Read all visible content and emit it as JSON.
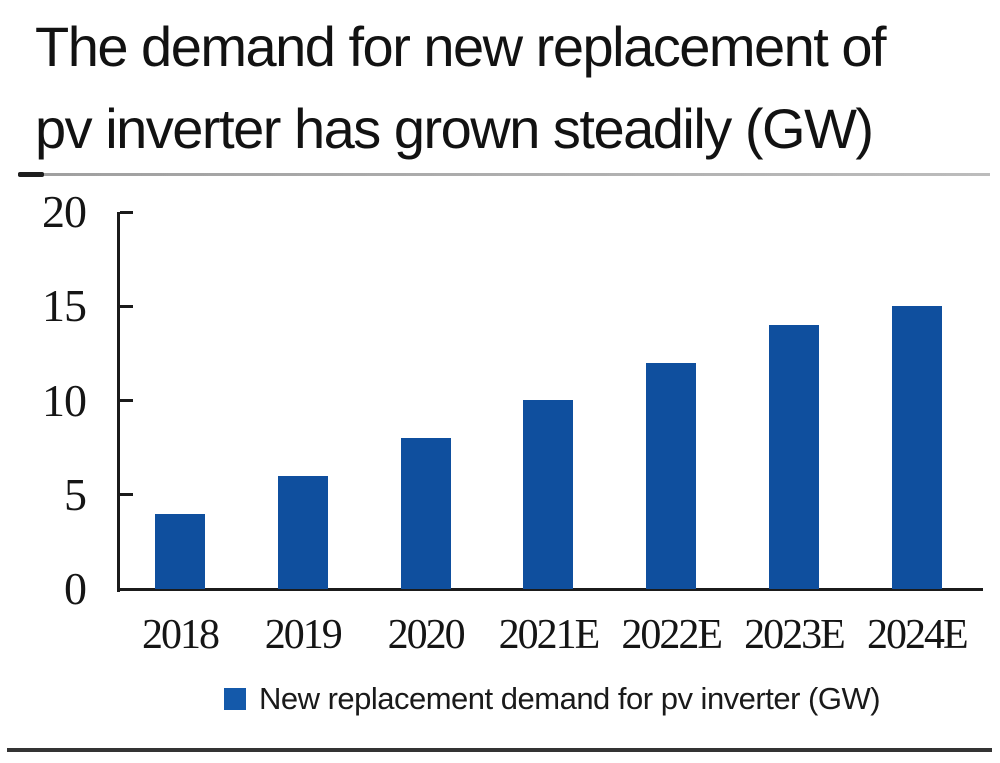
{
  "title": {
    "line1": "The demand for new replacement of",
    "line2": "pv inverter has grown steadily (GW)"
  },
  "chart_data": {
    "type": "bar",
    "title": "The demand for new replacement of pv inverter has grown steadily (GW)",
    "categories": [
      "2018",
      "2019",
      "2020",
      "2021E",
      "2022E",
      "2023E",
      "2024E"
    ],
    "values": [
      4,
      6,
      8,
      10,
      12,
      14,
      15
    ],
    "xlabel": "",
    "ylabel": "",
    "ylim": [
      0,
      20
    ],
    "yticks": [
      0,
      5,
      10,
      15,
      20
    ],
    "grid": false,
    "legend_position": "bottom-center",
    "legend_label": "New replacement demand for pv inverter (GW)",
    "bar_color": "#0F4F9E",
    "legend_swatch_color": "#1459AA",
    "axis_color": "#1b1b1b"
  }
}
